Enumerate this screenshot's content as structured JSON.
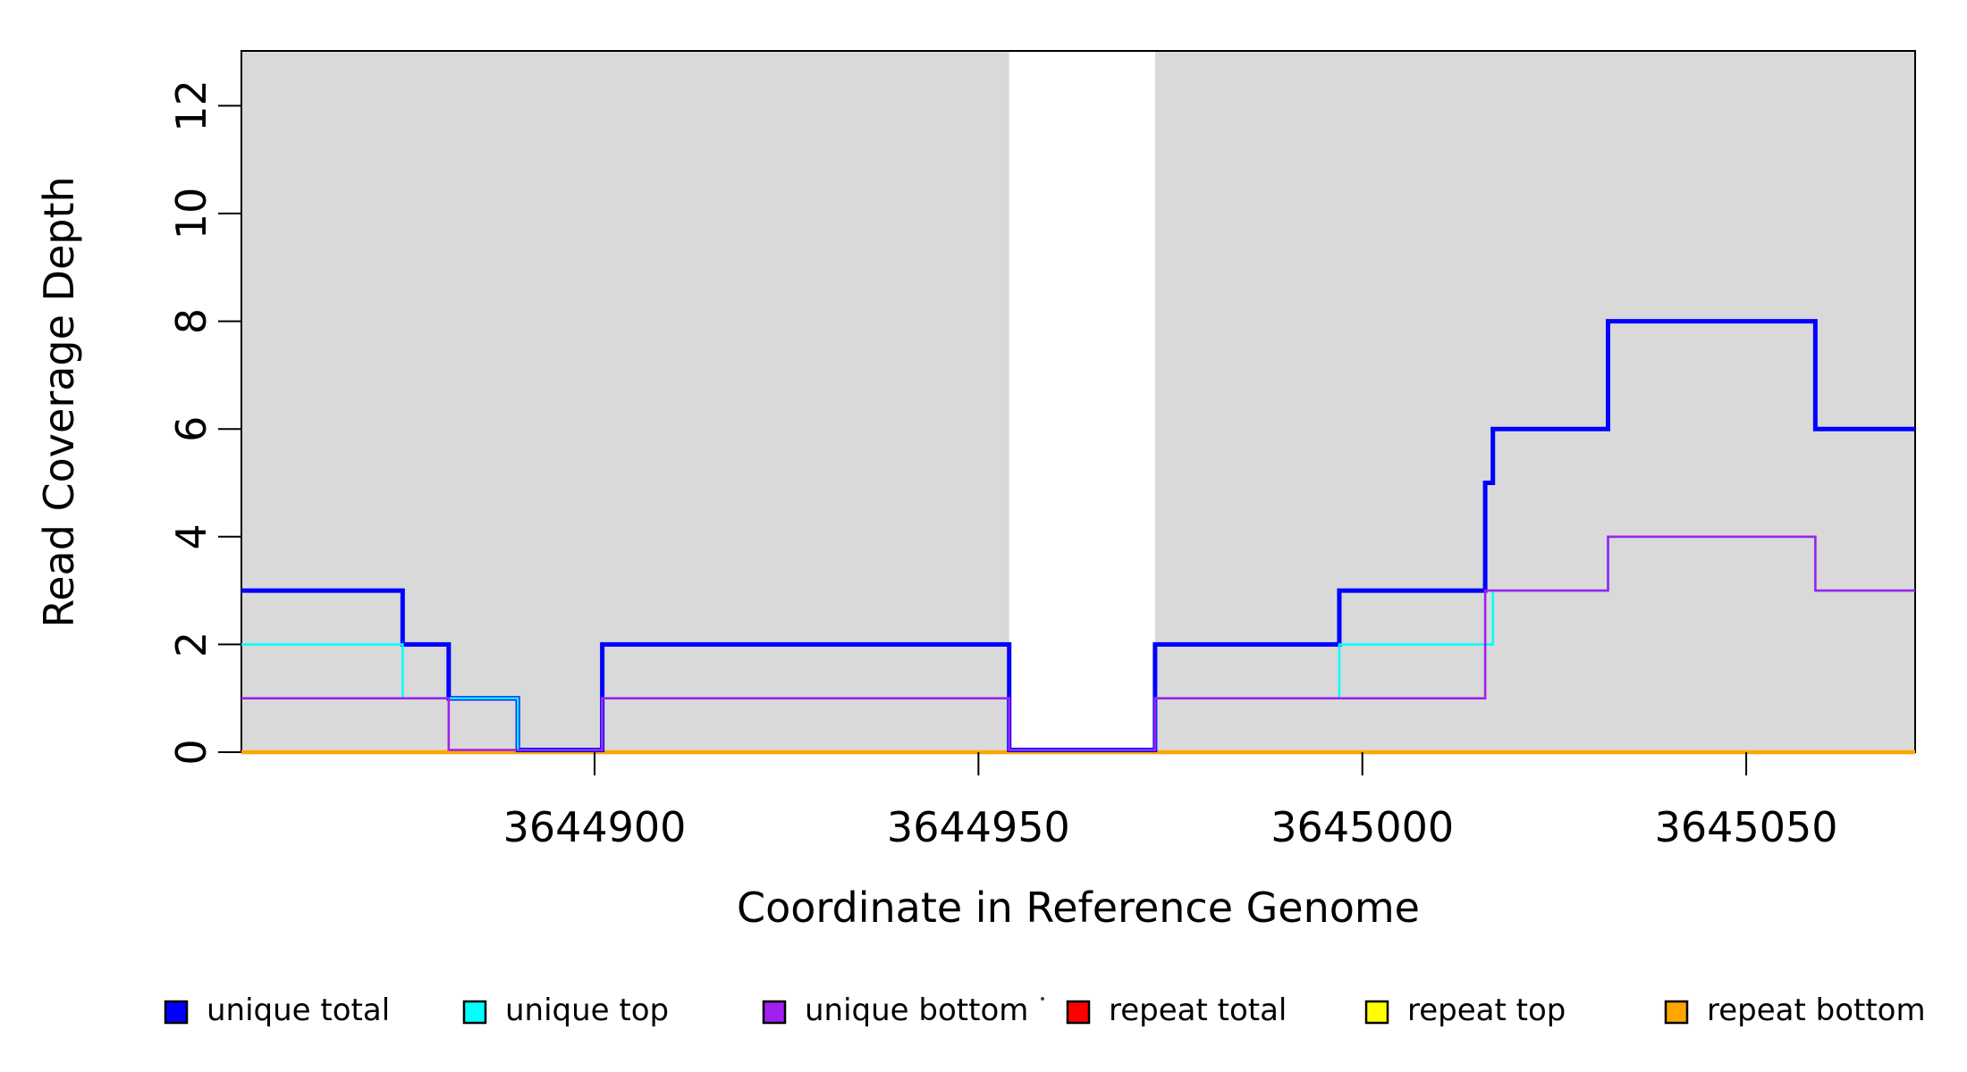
{
  "figure": {
    "background_color": "#ffffff",
    "plot_background_shading_color": "#d9d9d9"
  },
  "chart_data": {
    "type": "line",
    "subtype": "step-coverage",
    "title": "",
    "xlabel": "Coordinate in Reference Genome",
    "ylabel": "Read Coverage Depth",
    "xlim": [
      3644854,
      3645072
    ],
    "ylim": [
      0,
      13
    ],
    "x_ticks": [
      3644900,
      3644950,
      3645000,
      3645050
    ],
    "x_tick_labels": [
      "3644900",
      "3644950",
      "3645000",
      "3645050"
    ],
    "y_ticks": [
      0,
      2,
      4,
      6,
      8,
      10,
      12
    ],
    "y_tick_labels": [
      "0",
      "2",
      "4",
      "6",
      "8",
      "10",
      "12"
    ],
    "grid": false,
    "legend_position": "bottom",
    "shaded_regions": {
      "color": "#d9d9d9",
      "ranges": [
        [
          3644854,
          3644954
        ],
        [
          3644973,
          3645072
        ]
      ]
    },
    "series": [
      {
        "name": "unique total",
        "color": "#0000ff",
        "width": 5,
        "zero_lift": true,
        "steps": [
          [
            3644854,
            3
          ],
          [
            3644875,
            2
          ],
          [
            3644881,
            1
          ],
          [
            3644890,
            0
          ],
          [
            3644901,
            2
          ],
          [
            3644954,
            0
          ],
          [
            3644973,
            2
          ],
          [
            3644997,
            3
          ],
          [
            3645016,
            5
          ],
          [
            3645017,
            6
          ],
          [
            3645032,
            8
          ],
          [
            3645059,
            6
          ]
        ],
        "end": 3645072
      },
      {
        "name": "unique top",
        "color": "#00ffff",
        "width": 2.6,
        "zero_lift": true,
        "steps": [
          [
            3644854,
            2
          ],
          [
            3644875,
            1
          ],
          [
            3644890,
            0
          ],
          [
            3644901,
            1
          ],
          [
            3644954,
            0
          ],
          [
            3644973,
            1
          ],
          [
            3644997,
            2
          ],
          [
            3645017,
            3
          ],
          [
            3645032,
            4
          ],
          [
            3645059,
            3
          ]
        ],
        "end": 3645072
      },
      {
        "name": "unique bottom",
        "color": "#a020f0",
        "width": 2.6,
        "zero_lift": true,
        "steps": [
          [
            3644854,
            1
          ],
          [
            3644881,
            0
          ],
          [
            3644901,
            1
          ],
          [
            3644954,
            0
          ],
          [
            3644973,
            1
          ],
          [
            3645016,
            3
          ],
          [
            3645032,
            4
          ],
          [
            3645059,
            3
          ]
        ],
        "end": 3645072
      },
      {
        "name": "repeat total",
        "color": "#ff0000",
        "width": 2.5,
        "zero_lift": false,
        "steps": [
          [
            3644854,
            0
          ]
        ],
        "end": 3645072
      },
      {
        "name": "repeat top",
        "color": "#ffff00",
        "width": 2.5,
        "zero_lift": false,
        "steps": [
          [
            3644854,
            0
          ]
        ],
        "end": 3645072
      },
      {
        "name": "repeat bottom",
        "color": "#ffa500",
        "width": 4.5,
        "zero_lift": false,
        "steps": [
          [
            3644854,
            0
          ]
        ],
        "end": 3645072
      }
    ],
    "legend": {
      "entries": [
        {
          "label": "unique total",
          "color": "#0000ff"
        },
        {
          "label": "unique top",
          "color": "#00ffff"
        },
        {
          "label": "unique bottom",
          "color": "#a020f0"
        },
        {
          "label": "repeat total",
          "color": "#ff0000"
        },
        {
          "label": "repeat top",
          "color": "#ffff00"
        },
        {
          "label": "repeat bottom",
          "color": "#ffa500"
        }
      ]
    }
  }
}
